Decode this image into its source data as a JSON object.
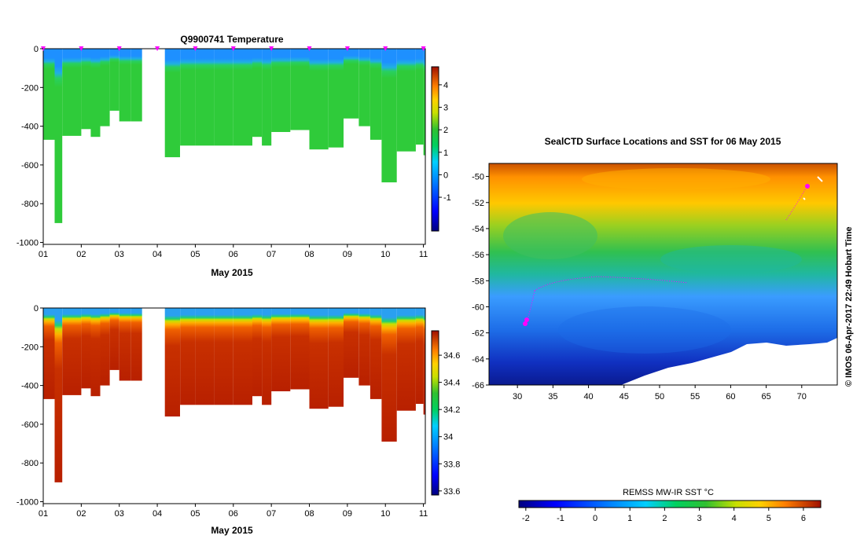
{
  "figure": {
    "colors": {
      "magenta": "#ff00ff",
      "land": "#ffffff"
    }
  },
  "chart_data": [
    {
      "type": "heatmap",
      "title": "Q9900741  Temperature",
      "xlabel": "May 2015",
      "ylabel": "",
      "x_tick_labels": [
        "01",
        "02",
        "03",
        "04",
        "05",
        "06",
        "07",
        "08",
        "09",
        "10",
        "11"
      ],
      "xlim": [
        1,
        11.05
      ],
      "y_tick_labels": [
        "0",
        "-200",
        "-400",
        "-600",
        "-800",
        "-1000"
      ],
      "ylim": [
        -1010,
        0
      ],
      "colorbar": {
        "tick_labels": [
          "4",
          "3",
          "2",
          "1",
          "0",
          "-1"
        ],
        "range": [
          -2.5,
          4.8
        ]
      },
      "profiles": [
        {
          "day": 1.0,
          "depth": 470
        },
        {
          "day": 1.3,
          "depth": 900
        },
        {
          "day": 1.5,
          "depth": 450
        },
        {
          "day": 2.0,
          "depth": 415
        },
        {
          "day": 2.25,
          "depth": 455
        },
        {
          "day": 2.5,
          "depth": 400
        },
        {
          "day": 2.75,
          "depth": 320
        },
        {
          "day": 3.0,
          "depth": 375
        },
        {
          "day": 3.3,
          "depth": 375
        },
        {
          "day": 4.2,
          "depth": 560
        },
        {
          "day": 4.6,
          "depth": 500
        },
        {
          "day": 5.0,
          "depth": 500
        },
        {
          "day": 5.5,
          "depth": 500
        },
        {
          "day": 6.0,
          "depth": 500
        },
        {
          "day": 6.5,
          "depth": 455
        },
        {
          "day": 6.75,
          "depth": 500
        },
        {
          "day": 7.0,
          "depth": 430
        },
        {
          "day": 7.5,
          "depth": 420
        },
        {
          "day": 8.0,
          "depth": 520
        },
        {
          "day": 8.5,
          "depth": 510
        },
        {
          "day": 8.9,
          "depth": 360
        },
        {
          "day": 9.3,
          "depth": 400
        },
        {
          "day": 9.6,
          "depth": 470
        },
        {
          "day": 9.9,
          "depth": 690
        },
        {
          "day": 10.3,
          "depth": 530
        },
        {
          "day": 10.8,
          "depth": 495
        },
        {
          "day": 11.0,
          "depth": 550
        }
      ],
      "gap": [
        3.6,
        4.2
      ],
      "markers": [
        1.0,
        2.0,
        3.0,
        4.0,
        5.0,
        6.0,
        7.0,
        8.0,
        9.0,
        10.0,
        11.0
      ]
    },
    {
      "type": "heatmap",
      "title": "",
      "xlabel": "May 2015",
      "ylabel": "",
      "x_tick_labels": [
        "01",
        "02",
        "03",
        "04",
        "05",
        "06",
        "07",
        "08",
        "09",
        "10",
        "11"
      ],
      "xlim": [
        1,
        11.05
      ],
      "y_tick_labels": [
        "0",
        "-200",
        "-400",
        "-600",
        "-800",
        "-1000"
      ],
      "ylim": [
        -1010,
        0
      ],
      "colorbar": {
        "tick_labels": [
          "34.6",
          "34.4",
          "34.2",
          "34",
          "33.8",
          "33.6"
        ],
        "range": [
          33.57,
          34.78
        ]
      },
      "same_profiles_as": 0
    },
    {
      "type": "heatmap",
      "title": "SealCTD Surface Locations and SST for 06 May 2015",
      "xlabel": "",
      "ylabel": "",
      "x_tick_labels": [
        "30",
        "35",
        "40",
        "45",
        "50",
        "55",
        "60",
        "65",
        "70"
      ],
      "xlim": [
        26,
        75
      ],
      "y_tick_labels": [
        "-50",
        "-52",
        "-54",
        "-56",
        "-58",
        "-60",
        "-62",
        "-64",
        "-66"
      ],
      "ylim": [
        -66,
        -49
      ],
      "side_text": "© IMOS 06-Apr-2017 22:49 Hobart Time",
      "colorbar": {
        "label": "REMSS MW-IR SST °C",
        "tick_labels": [
          "-2",
          "-1",
          "0",
          "1",
          "2",
          "3",
          "4",
          "5",
          "6"
        ],
        "range": [
          -2.2,
          6.5
        ]
      }
    }
  ]
}
